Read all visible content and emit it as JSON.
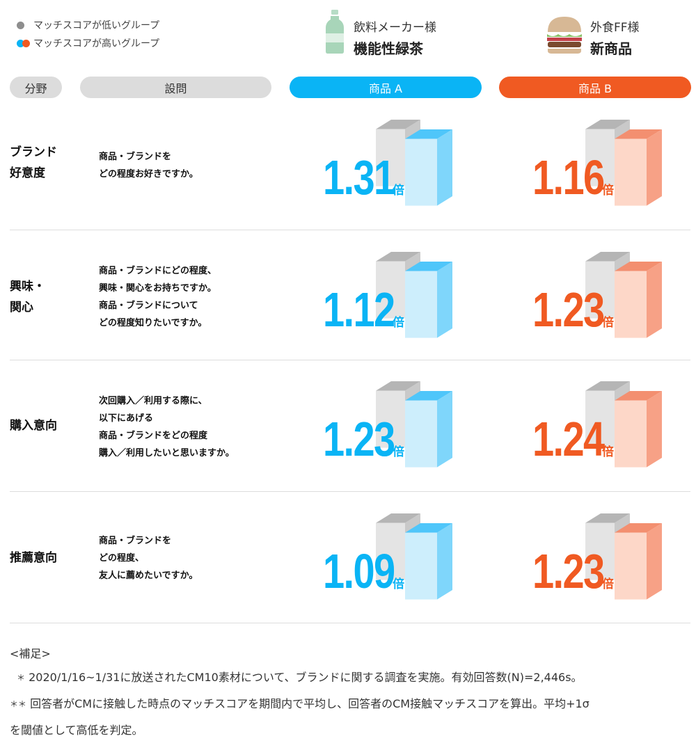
{
  "legend": {
    "low_label": "マッチスコアが低いグループ",
    "high_label": "マッチスコアが高いグループ"
  },
  "products": [
    {
      "company": "飲料メーカー様",
      "name": "機能性緑茶",
      "icon": "bottle-icon"
    },
    {
      "company": "外食FF様",
      "name": "新商品",
      "icon": "burger-icon"
    }
  ],
  "columns": {
    "field": "分野",
    "question": "設問",
    "product_a": "商品 A",
    "product_b": "商品 B"
  },
  "colors": {
    "blue": "#0ab4f5",
    "orange": "#f05a22",
    "gray_box": "#d9d9d9",
    "blue_box": "#cdeefc",
    "orange_box": "#fdd7c8"
  },
  "unit": "倍",
  "chart_data": {
    "type": "table",
    "categories": [
      "ブランド好意度",
      "興味・関心",
      "購入意向",
      "推薦意向"
    ],
    "series": [
      {
        "name": "商品 A",
        "values": [
          1.31,
          1.12,
          1.23,
          1.09
        ]
      },
      {
        "name": "商品 B",
        "values": [
          1.16,
          1.23,
          1.24,
          1.23
        ]
      }
    ]
  },
  "rows": [
    {
      "category_lines": [
        "ブランド",
        "好意度"
      ],
      "question_lines": [
        "商品・ブランドを",
        "どの程度お好きですか。"
      ],
      "a": "1.31",
      "b": "1.16"
    },
    {
      "category_lines": [
        "興味・",
        "関心"
      ],
      "question_lines": [
        "商品・ブランドにどの程度、",
        "興味・関心をお持ちですか。",
        "商品・ブランドについて",
        "どの程度知りたいですか。"
      ],
      "a": "1.12",
      "b": "1.23"
    },
    {
      "category_lines": [
        "購入意向"
      ],
      "question_lines": [
        "次回購入／利用する際に、",
        "以下にあげる",
        "商品・ブランドをどの程度",
        "購入／利用したいと思いますか。"
      ],
      "a": "1.23",
      "b": "1.24"
    },
    {
      "category_lines": [
        "推薦意向"
      ],
      "question_lines": [
        "商品・ブランドを",
        "どの程度、",
        "友人に薦めたいですか。"
      ],
      "a": "1.09",
      "b": "1.23"
    }
  ],
  "notes": {
    "heading": "<補足>",
    "note1_mark": "＊",
    "note1": "2020/1/16~1/31に放送されたCM10素材について、ブランドに関する調査を実施。有効回答数(N)=2,446s。",
    "note2_mark": "＊＊",
    "note2_line1": "回答者がCMに接触した時点のマッチスコアを期間内で平均し、回答者のCM接触マッチスコアを算出。平均+1σ",
    "note2_line2": "を閾値として高低を判定。"
  }
}
